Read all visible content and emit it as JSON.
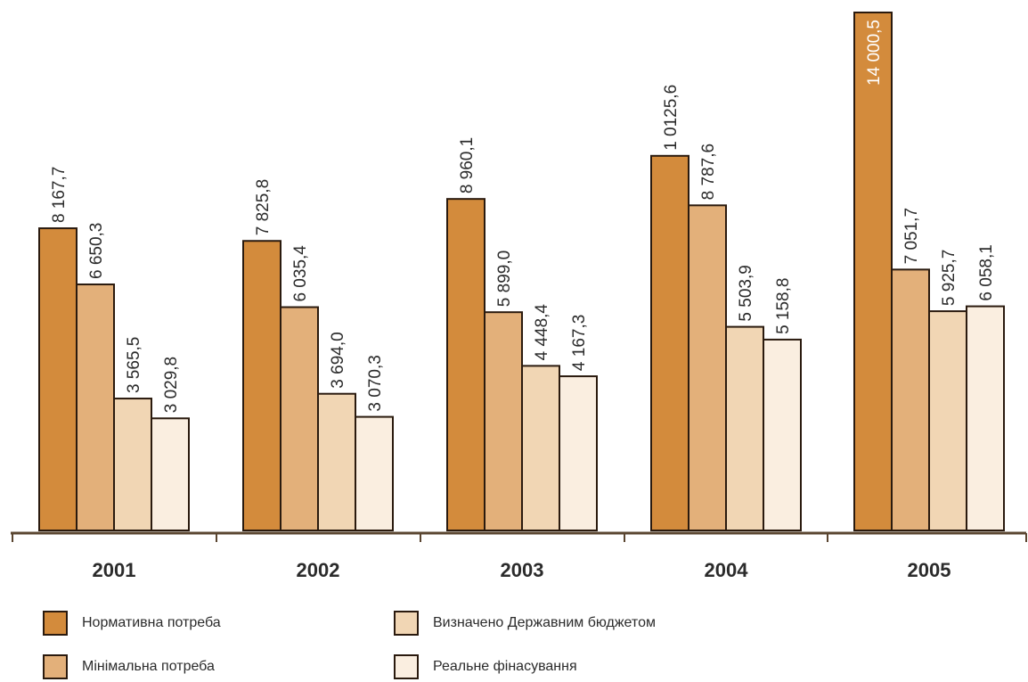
{
  "chart_data": {
    "type": "bar",
    "categories": [
      "2001",
      "2002",
      "2003",
      "2004",
      "2005"
    ],
    "series": [
      {
        "name": "Нормативна потреба",
        "values": [
          8167.7,
          7825.8,
          8960.1,
          10125.6,
          14000.5
        ],
        "labels": [
          "8 167,7",
          "7 825,8",
          "8 960,1",
          "1 0125,6",
          "14 000,5"
        ],
        "color": "#d38b3c"
      },
      {
        "name": "Мінімальна потреба",
        "values": [
          6650.3,
          6035.4,
          5899.0,
          8787.6,
          7051.7
        ],
        "labels": [
          "6 650,3",
          "6 035,4",
          "5 899,0",
          "8 787,6",
          "7 051,7"
        ],
        "color": "#e3b07a"
      },
      {
        "name": "Визначено Державним бюджетом",
        "values": [
          3565.5,
          3694.0,
          4448.4,
          5503.9,
          5925.7
        ],
        "labels": [
          "3 565,5",
          "3 694,0",
          "4 448,4",
          "5 503,9",
          "5 925,7"
        ],
        "color": "#f1d6b4"
      },
      {
        "name": "Реальне фінасування",
        "values": [
          3029.8,
          3070.3,
          4167.3,
          5158.8,
          6058.1
        ],
        "labels": [
          "3 029,8",
          "3 070,3",
          "4 167,3",
          "5 158,8",
          "6 058,1"
        ],
        "color": "#faeee0"
      }
    ],
    "ylim": [
      0,
      14000.5
    ],
    "grid": false,
    "legend_position": "bottom"
  }
}
